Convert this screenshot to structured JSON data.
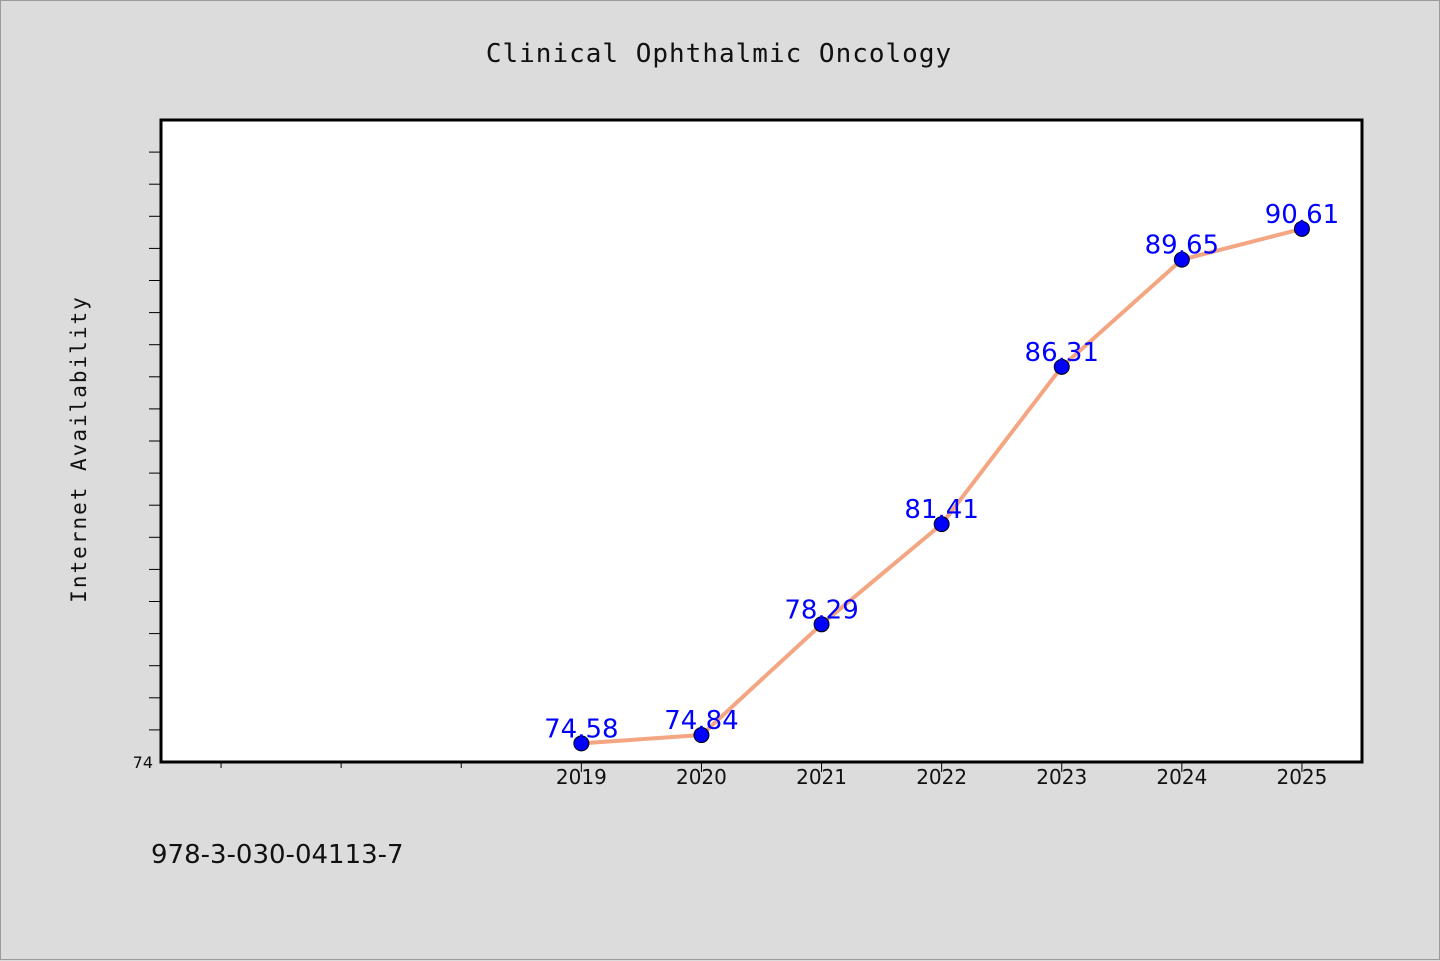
{
  "chart_data": {
    "type": "line",
    "title": "Clinical Ophthalmic Oncology",
    "xlabel": "",
    "ylabel": "Internet Availability",
    "categories": [
      "2019",
      "2020",
      "2021",
      "2022",
      "2023",
      "2024",
      "2025"
    ],
    "series": [
      {
        "values": [
          74.58,
          74.84,
          78.29,
          81.41,
          86.31,
          89.65,
          90.61
        ]
      }
    ],
    "data_labels": [
      "74.58",
      "74.84",
      "78.29",
      "81.41",
      "86.31",
      "89.65",
      "90.61"
    ],
    "ytick_labels": [
      "74"
    ],
    "ylim": [
      74,
      94
    ],
    "xlim": [
      2015.5,
      2025.5
    ],
    "grid": false,
    "legend": "none",
    "line_color": "#f4a582",
    "marker_color": "#0000ff",
    "label_color": "#0000ff",
    "footnote": "978-3-030-04113-7"
  }
}
